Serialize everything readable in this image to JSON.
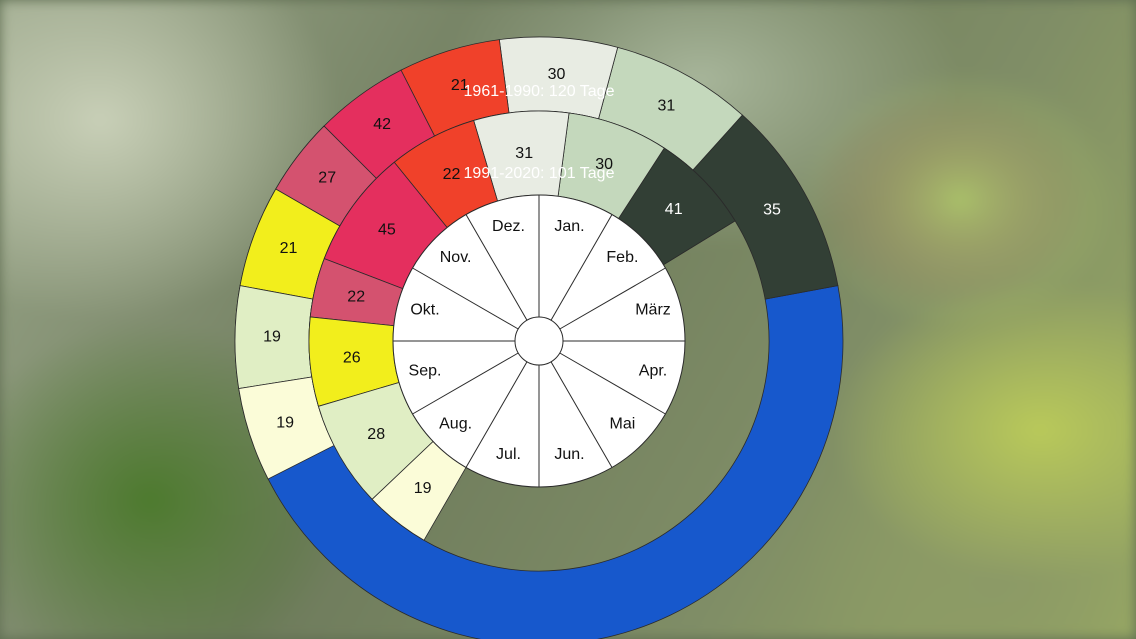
{
  "chart_data": {
    "type": "radial",
    "months": [
      "Jan.",
      "Feb.",
      "März",
      "Apr.",
      "Mai",
      "Jun.",
      "Jul.",
      "Aug.",
      "Sep.",
      "Okt.",
      "Nov.",
      "Dez."
    ],
    "outer": {
      "label": "1961-1990: 120 Tage",
      "segments": [
        {
          "start": 2.65,
          "end": 10.5,
          "value": null,
          "color": "#1758cc"
        },
        {
          "start": 1.4,
          "end": 2.65,
          "value": 35,
          "color": "#323f35"
        },
        {
          "start": 0.5,
          "end": 1.4,
          "value": 31,
          "color": "#c4d8bc"
        },
        {
          "start": 11.75,
          "end": 0.5,
          "value": 30,
          "color": "#e8ece3"
        },
        {
          "start": 11.1,
          "end": 11.75,
          "value": 21,
          "color": "#f0412a"
        },
        {
          "start": 10.5,
          "end": 11.1,
          "value": 42,
          "color": "#e42f5e"
        },
        {
          "start": 10.0,
          "end": 10.5,
          "value": 27,
          "color": "#d4526f"
        },
        {
          "start": 9.35,
          "end": 10.0,
          "value": 21,
          "color": "#f2ee1c"
        },
        {
          "start": 8.7,
          "end": 9.35,
          "value": 19,
          "color": "#e0eec4"
        },
        {
          "start": 8.1,
          "end": 8.7,
          "value": 19,
          "color": "#fbfcd8"
        }
      ]
    },
    "inner": {
      "label": "1991-2020: 101 Tage",
      "segments": [
        {
          "start": 8.1,
          "end": 1.95,
          "value": null,
          "color": "#1758cc"
        },
        {
          "start": 1.1,
          "end": 1.95,
          "value": 41,
          "color": "#323f35"
        },
        {
          "start": 0.25,
          "end": 1.1,
          "value": 30,
          "color": "#c4d8bc"
        },
        {
          "start": 11.45,
          "end": 0.25,
          "value": 31,
          "color": "#e8ece3"
        },
        {
          "start": 10.7,
          "end": 11.45,
          "value": 22,
          "color": "#f0412a"
        },
        {
          "start": 9.7,
          "end": 10.7,
          "value": 45,
          "color": "#e42f5e"
        },
        {
          "start": 9.2,
          "end": 9.7,
          "value": 22,
          "color": "#d4526f"
        },
        {
          "start": 8.45,
          "end": 9.2,
          "value": 26,
          "color": "#f2ee1c"
        },
        {
          "start": 7.55,
          "end": 8.45,
          "value": 28,
          "color": "#e0eec4"
        },
        {
          "start": 7.0,
          "end": 7.55,
          "value": 19,
          "color": "#fbfcd8"
        }
      ]
    }
  }
}
